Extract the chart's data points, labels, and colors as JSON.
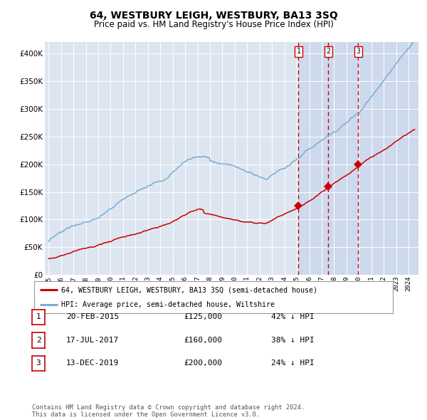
{
  "title": "64, WESTBURY LEIGH, WESTBURY, BA13 3SQ",
  "subtitle": "Price paid vs. HM Land Registry's House Price Index (HPI)",
  "title_fontsize": 10,
  "subtitle_fontsize": 8.5,
  "background_color": "#ffffff",
  "plot_bg_color": "#dde6f0",
  "highlight_bg": "#cdd9ed",
  "grid_color": "#ffffff",
  "red_line_color": "#cc0000",
  "blue_line_color": "#7aadd4",
  "vline_color": "#cc0000",
  "marker_color": "#cc0000",
  "transactions": [
    {
      "date_num": 2015.13,
      "price": 125000,
      "label": "1"
    },
    {
      "date_num": 2017.54,
      "price": 160000,
      "label": "2"
    },
    {
      "date_num": 2019.95,
      "price": 200000,
      "label": "3"
    }
  ],
  "table_data": [
    {
      "label": "1",
      "date": "20-FEB-2015",
      "price": "£125,000",
      "pct": "42% ↓ HPI"
    },
    {
      "label": "2",
      "date": "17-JUL-2017",
      "price": "£160,000",
      "pct": "38% ↓ HPI"
    },
    {
      "label": "3",
      "date": "13-DEC-2019",
      "price": "£200,000",
      "pct": "24% ↓ HPI"
    }
  ],
  "footer": "Contains HM Land Registry data © Crown copyright and database right 2024.\nThis data is licensed under the Open Government Licence v3.0.",
  "legend_entries": [
    "64, WESTBURY LEIGH, WESTBURY, BA13 3SQ (semi-detached house)",
    "HPI: Average price, semi-detached house, Wiltshire"
  ],
  "ylim": [
    0,
    420000
  ],
  "yticks": [
    0,
    50000,
    100000,
    150000,
    200000,
    250000,
    300000,
    350000,
    400000
  ],
  "xlim_start": 1994.7,
  "xlim_end": 2024.8
}
